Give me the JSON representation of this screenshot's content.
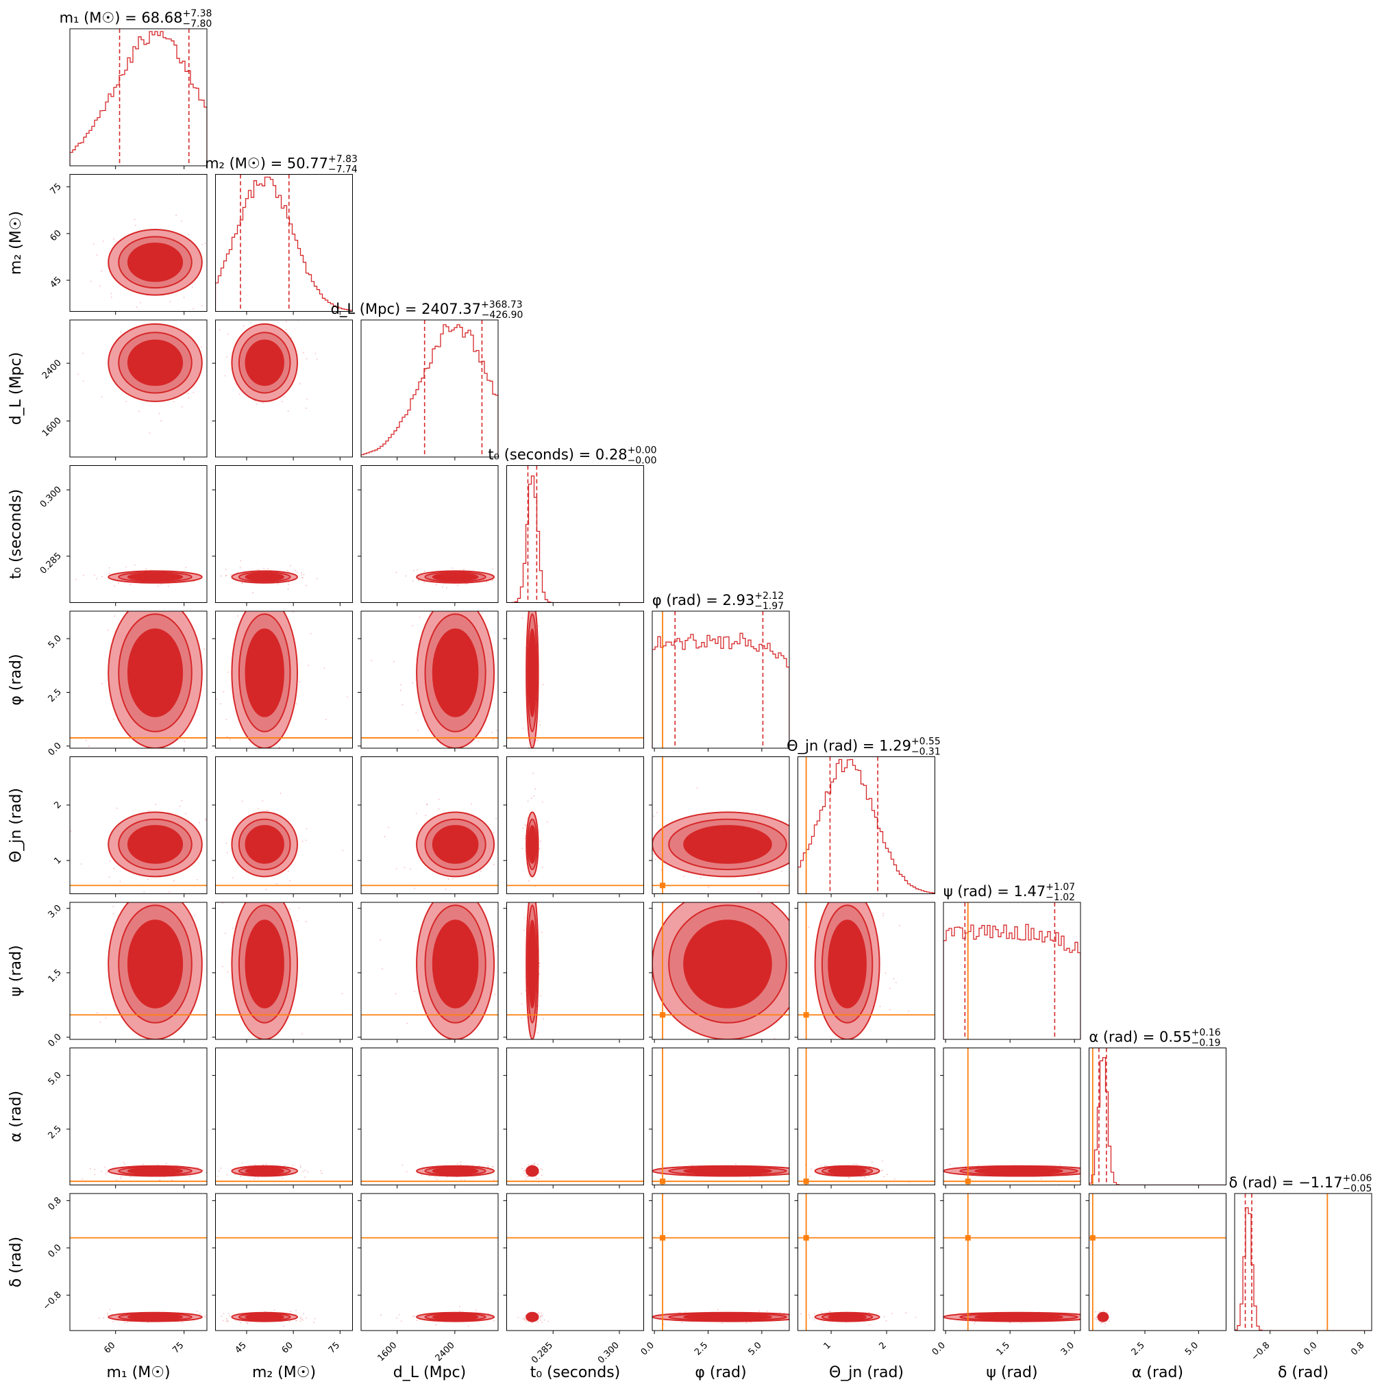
{
  "chart_data": {
    "type": "corner",
    "parameters": [
      {
        "key": "m1",
        "label": "m₁ (M☉)",
        "title": {
          "name": "m₁ (M☉)",
          "value": "68.68",
          "plus": "+7.38",
          "minus": "−7.80"
        },
        "range": [
          50,
          80
        ],
        "ticks": [
          "60",
          "75"
        ],
        "tick_values": [
          60,
          75
        ],
        "median": 68.68,
        "q_low": 60.88,
        "q_high": 76.06,
        "truth": null
      },
      {
        "key": "m2",
        "label": "m₂ (M☉)",
        "title": {
          "name": "m₂ (M☉)",
          "value": "50.77",
          "plus": "+7.83",
          "minus": "−7.74"
        },
        "range": [
          35,
          79
        ],
        "ticks": [
          "45",
          "60",
          "75"
        ],
        "tick_values": [
          45,
          60,
          75
        ],
        "median": 50.77,
        "q_low": 43.03,
        "q_high": 58.6,
        "truth": null
      },
      {
        "key": "dL",
        "label": "d_L (Mpc)",
        "title": {
          "name": "d_L (Mpc)",
          "value": "2407.37",
          "plus": "+368.73",
          "minus": "−426.90"
        },
        "range": [
          1100,
          3000
        ],
        "ticks": [
          "1600",
          "2400"
        ],
        "tick_values": [
          1600,
          2400
        ],
        "median": 2407.37,
        "q_low": 1980.47,
        "q_high": 2776.1,
        "truth": null
      },
      {
        "key": "t0",
        "label": "t₀ (seconds)",
        "title": {
          "name": "t₀ (seconds)",
          "value": "0.28",
          "plus": "+0.00",
          "minus": "−0.00"
        },
        "range": [
          0.2745,
          0.3055
        ],
        "ticks": [
          "0.285",
          "0.300"
        ],
        "tick_values": [
          0.285,
          0.3
        ],
        "median": 0.2803,
        "q_low": 0.2793,
        "q_high": 0.2813,
        "truth": null
      },
      {
        "key": "phi",
        "label": "φ (rad)",
        "title": {
          "name": "φ (rad)",
          "value": "2.93",
          "plus": "+2.12",
          "minus": "−1.97"
        },
        "range": [
          -0.1,
          6.28
        ],
        "ticks": [
          "0.0",
          "2.5",
          "5.0"
        ],
        "tick_values": [
          0,
          2.5,
          5
        ],
        "median": 2.93,
        "q_low": 0.96,
        "q_high": 5.05,
        "truth": 0.38
      },
      {
        "key": "theta",
        "label": "Θ_jn (rad)",
        "title": {
          "name": "Θ_jn (rad)",
          "value": "1.29",
          "plus": "+0.55",
          "minus": "−0.31"
        },
        "range": [
          0.4,
          2.87
        ],
        "ticks": [
          "1",
          "2"
        ],
        "tick_values": [
          1,
          2
        ],
        "median": 1.29,
        "q_low": 0.98,
        "q_high": 1.84,
        "truth": 0.55
      },
      {
        "key": "psi",
        "label": "ψ (rad)",
        "title": {
          "name": "ψ (rad)",
          "value": "1.47",
          "plus": "+1.07",
          "minus": "−1.02"
        },
        "range": [
          -0.05,
          3.14
        ],
        "ticks": [
          "0.0",
          "1.5",
          "3.0"
        ],
        "tick_values": [
          0,
          1.5,
          3
        ],
        "median": 1.47,
        "q_low": 0.45,
        "q_high": 2.54,
        "truth": 0.52
      },
      {
        "key": "alpha",
        "label": "α (rad)",
        "title": {
          "name": "α (rad)",
          "value": "0.55",
          "plus": "+0.16",
          "minus": "−0.19"
        },
        "range": [
          -0.1,
          6.28
        ],
        "ticks": [
          "2.5",
          "5.0"
        ],
        "tick_values": [
          2.5,
          5
        ],
        "median": 0.55,
        "q_low": 0.36,
        "q_high": 0.71,
        "truth": 0.07
      },
      {
        "key": "delta",
        "label": "δ (rad)",
        "title": {
          "name": "δ (rad)",
          "value": "−1.17",
          "plus": "+0.06",
          "minus": "−0.05"
        },
        "range": [
          -1.4,
          0.92
        ],
        "ticks": [
          "−0.8",
          "0.0",
          "0.8"
        ],
        "tick_values": [
          -0.8,
          0,
          0.8
        ],
        "median": -1.17,
        "q_low": -1.22,
        "q_high": -1.11,
        "truth": 0.17
      }
    ],
    "colors": {
      "posterior": "#d62728",
      "light": "#f0a0a2",
      "mid": "#e47c7f",
      "truth": "#ff7f0e"
    },
    "contour_levels": 3,
    "grid": false
  }
}
